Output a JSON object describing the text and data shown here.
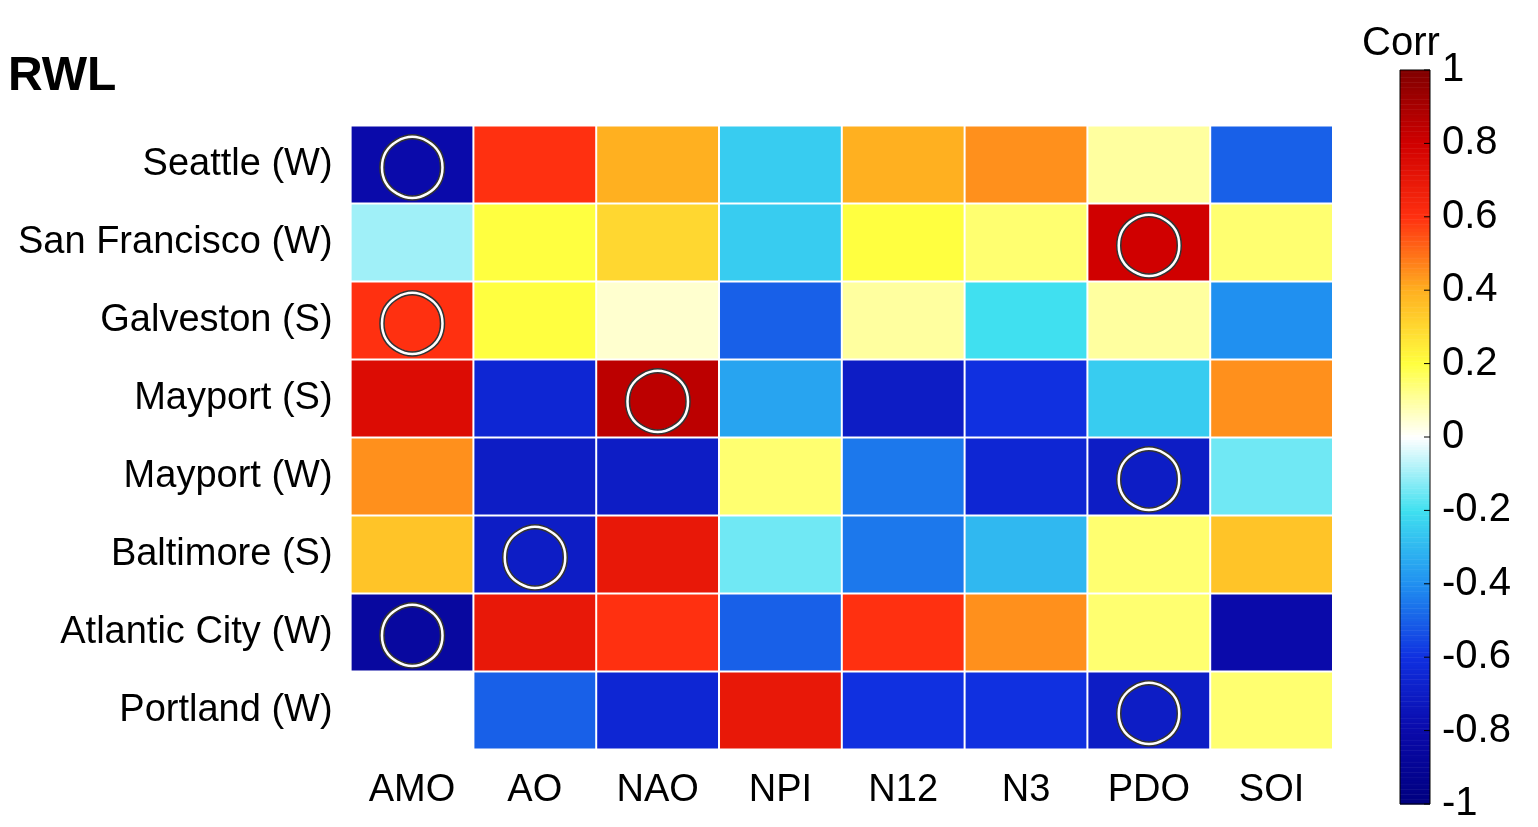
{
  "chart_data": {
    "type": "heatmap",
    "title": "RWL",
    "clabel": "Corr",
    "categories": [
      "AMO",
      "AO",
      "NAO",
      "NPI",
      "N12",
      "N3",
      "PDO",
      "SOI"
    ],
    "y_categories": [
      "Seattle (W)",
      "San Francisco (W)",
      "Galveston (S)",
      "Mayport (S)",
      "Mayport (W)",
      "Baltimore (S)",
      "Atlantic City (W)",
      "Portland (W)"
    ],
    "cells": [
      [
        -0.8,
        0.6,
        0.4,
        -0.25,
        0.4,
        0.45,
        0.1,
        -0.5
      ],
      [
        -0.1,
        0.2,
        0.3,
        -0.25,
        0.2,
        0.15,
        0.8,
        0.15
      ],
      [
        0.6,
        0.2,
        0.05,
        -0.5,
        0.1,
        -0.2,
        0.1,
        -0.4
      ],
      [
        0.75,
        -0.65,
        0.85,
        -0.35,
        -0.7,
        -0.6,
        -0.25,
        0.45
      ],
      [
        0.45,
        -0.7,
        -0.7,
        0.15,
        -0.45,
        -0.65,
        -0.7,
        -0.15
      ],
      [
        0.35,
        -0.7,
        0.7,
        -0.15,
        -0.45,
        -0.3,
        0.15,
        0.35
      ],
      [
        -0.85,
        0.7,
        0.6,
        -0.5,
        0.6,
        0.45,
        0.15,
        -0.8
      ],
      [
        0.0,
        -0.5,
        -0.65,
        0.7,
        -0.6,
        -0.6,
        -0.7,
        0.15
      ]
    ],
    "cell_labels": [
      [
        "◯",
        null,
        null,
        null,
        null,
        null,
        null,
        null
      ],
      [
        null,
        null,
        null,
        null,
        null,
        null,
        "◯",
        null
      ],
      [
        "◯",
        null,
        null,
        null,
        null,
        null,
        null,
        null
      ],
      [
        null,
        null,
        "◯",
        null,
        null,
        null,
        null,
        null
      ],
      [
        null,
        null,
        null,
        null,
        null,
        null,
        "◯",
        null
      ],
      [
        null,
        "◯",
        null,
        null,
        null,
        null,
        null,
        null
      ],
      [
        "◯",
        null,
        null,
        null,
        null,
        null,
        null,
        null
      ],
      [
        null,
        null,
        null,
        null,
        null,
        null,
        "◯",
        null
      ]
    ],
    "clim": [
      -1,
      1
    ],
    "cticks": [
      -1,
      -0.8,
      -0.6,
      -0.4,
      -0.2,
      0,
      0.2,
      0.4,
      0.6,
      0.8,
      1
    ]
  }
}
